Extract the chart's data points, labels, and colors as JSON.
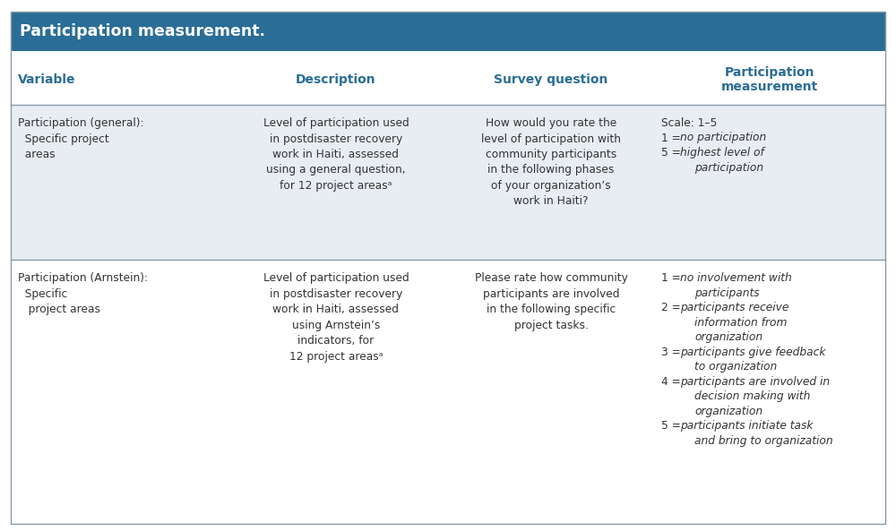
{
  "title": "Participation measurement.",
  "header_bg": "#2A6D96",
  "header_text_color": "#FFFFFF",
  "col_header_color": "#2A6D96",
  "row_bg_1": "#E8EDF3",
  "row_bg_2": "#FFFFFF",
  "separator_color": "#AABBCC",
  "body_text_color": "#333333",
  "col_headers": [
    "Variable",
    "Description",
    "Survey question",
    "Participation\nmeasurement"
  ],
  "rows": [
    {
      "bg": "#E8EDF3",
      "col0": "Participation (general):\n  Specific project\n  areas",
      "col1": "Level of participation used\nin postdisaster recovery\nwork in Haiti, assessed\nusing a general question,\nfor 12 project areasᵃ",
      "col2": "How would you rate the\nlevel of participation with\ncommunity participants\nin the following phases\nof your organization’s\nwork in Haiti?",
      "col3_lines": [
        {
          "prefix": "Scale: 1–5",
          "italic": "",
          "is_scale": true
        },
        {
          "prefix": "1 = ",
          "italic": "no participation",
          "is_scale": false
        },
        {
          "prefix": "5 = ",
          "italic": "highest level of",
          "is_scale": false
        },
        {
          "prefix": "       ",
          "italic": "participation",
          "is_scale": false
        }
      ]
    },
    {
      "bg": "#FFFFFF",
      "col0": "Participation (Arnstein):\n  Specific\n   project areas",
      "col1": "Level of participation used\nin postdisaster recovery\nwork in Haiti, assessed\nusing Arnstein’s\nindicators, for\n12 project areasᵃ",
      "col2": "Please rate how community\nparticipants are involved\nin the following specific\nproject tasks.",
      "col3_lines": [
        {
          "prefix": "1 = ",
          "italic": "no involvement with",
          "is_scale": false
        },
        {
          "prefix": "       ",
          "italic": "participants",
          "is_scale": false
        },
        {
          "prefix": "2 = ",
          "italic": "participants receive",
          "is_scale": false
        },
        {
          "prefix": "       ",
          "italic": "information from",
          "is_scale": false
        },
        {
          "prefix": "       ",
          "italic": "organization",
          "is_scale": false
        },
        {
          "prefix": "3 = ",
          "italic": "participants give feedback",
          "is_scale": false
        },
        {
          "prefix": "       ",
          "italic": "to organization",
          "is_scale": false
        },
        {
          "prefix": "4 = ",
          "italic": "participants are involved in",
          "is_scale": false
        },
        {
          "prefix": "       ",
          "italic": "decision making with",
          "is_scale": false
        },
        {
          "prefix": "       ",
          "italic": "organization",
          "is_scale": false
        },
        {
          "prefix": "5 = ",
          "italic": "participants initiate task",
          "is_scale": false
        },
        {
          "prefix": "       ",
          "italic": "and bring to organization",
          "is_scale": false
        }
      ]
    }
  ]
}
